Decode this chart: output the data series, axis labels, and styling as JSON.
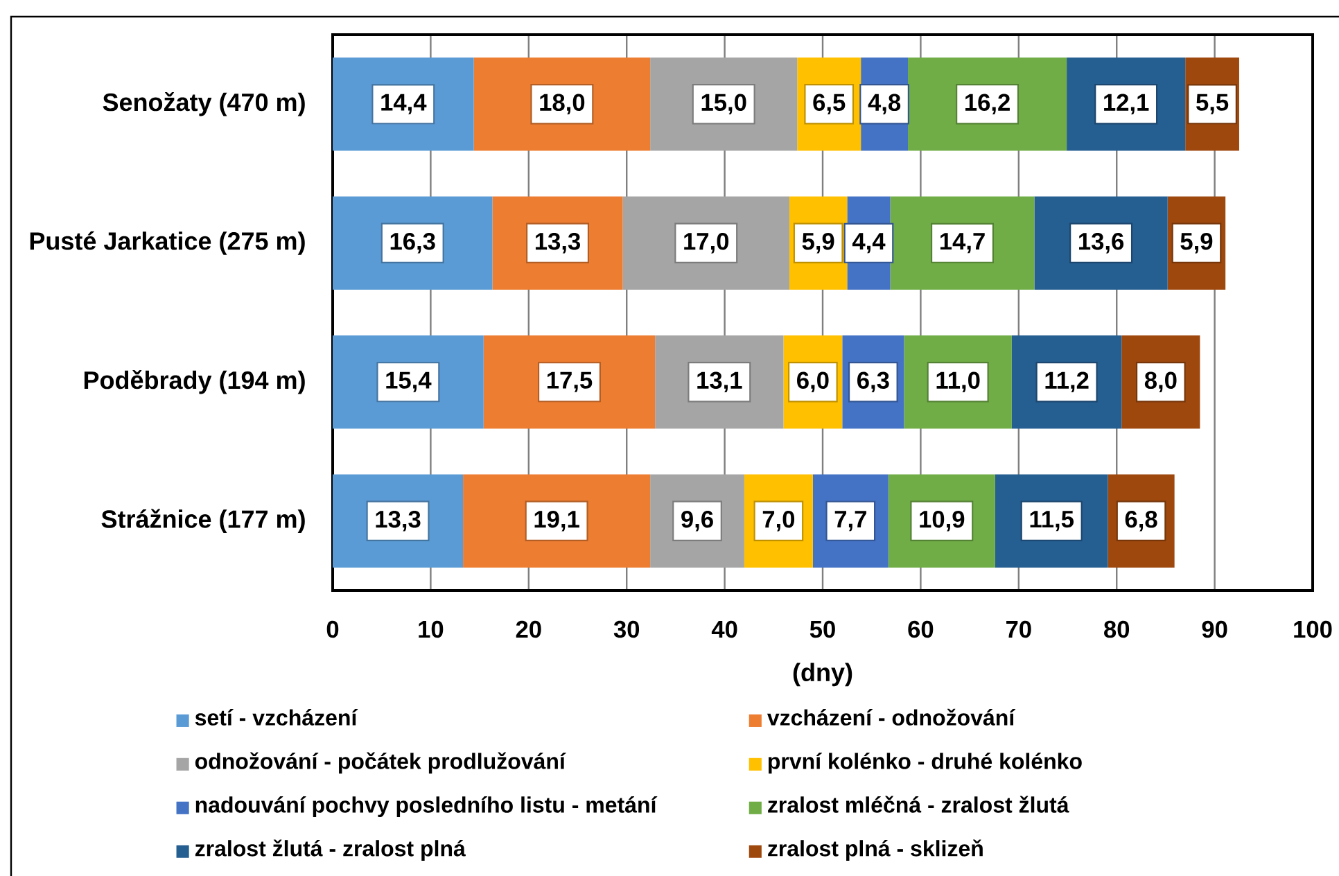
{
  "chart_data": {
    "type": "bar",
    "orientation": "horizontal",
    "stacked": true,
    "categories": [
      "Senožaty (470 m)",
      "Pusté Jarkatice (275 m)",
      "Poděbrady (194 m)",
      "Strážnice (177 m)"
    ],
    "xlabel": "(dny)",
    "xlim": [
      0,
      100
    ],
    "xticks": [
      0,
      10,
      20,
      30,
      40,
      50,
      60,
      70,
      80,
      90,
      100
    ],
    "grid": "x",
    "legend": "bottom",
    "series": [
      {
        "name": "setí - vzcházení",
        "color": "#5b9bd5",
        "values": [
          14.4,
          16.3,
          15.4,
          13.3
        ],
        "value_labels": [
          "14,4",
          "16,3",
          "15,4",
          "13,3"
        ]
      },
      {
        "name": "vzcházení - odnožování",
        "color": "#ed7d31",
        "values": [
          18.0,
          13.3,
          17.5,
          19.1
        ],
        "value_labels": [
          "18,0",
          "13,3",
          "17,5",
          "19,1"
        ]
      },
      {
        "name": "odnožování - počátek prodlužování",
        "color": "#a5a5a5",
        "values": [
          15.0,
          17.0,
          13.1,
          9.6
        ],
        "value_labels": [
          "15,0",
          "17,0",
          "13,1",
          "9,6"
        ]
      },
      {
        "name": "první kolénko - druhé kolénko",
        "color": "#ffc000",
        "values": [
          6.5,
          5.9,
          6.0,
          7.0
        ],
        "value_labels": [
          "6,5",
          "5,9",
          "6,0",
          "7,0"
        ]
      },
      {
        "name": "nadouvání pochvy posledního listu - metání",
        "color": "#4472c4",
        "values": [
          4.8,
          4.4,
          6.3,
          7.7
        ],
        "value_labels": [
          "4,8",
          "4,4",
          "6,3",
          "7,7"
        ]
      },
      {
        "name": "zralost mléčná - zralost žlutá",
        "color": "#70ad47",
        "values": [
          16.2,
          14.7,
          11.0,
          10.9
        ],
        "value_labels": [
          "16,2",
          "14,7",
          "11,0",
          "10,9"
        ]
      },
      {
        "name": "zralost žlutá - zralost plná",
        "color": "#255e91",
        "values": [
          12.1,
          13.6,
          11.2,
          11.5
        ],
        "value_labels": [
          "12,1",
          "13,6",
          "11,2",
          "11,5"
        ]
      },
      {
        "name": "zralost plná - sklizeň",
        "color": "#9e480e",
        "values": [
          5.5,
          5.9,
          8.0,
          6.8
        ],
        "value_labels": [
          "5,5",
          "5,9",
          "8,0",
          "6,8"
        ]
      }
    ]
  }
}
